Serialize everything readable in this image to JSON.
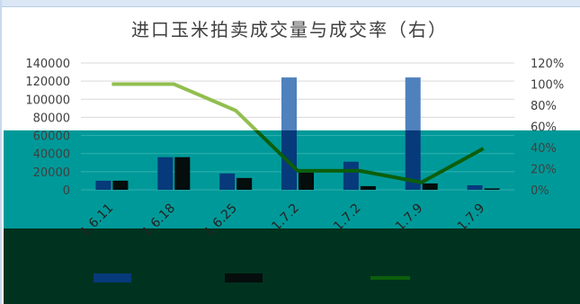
{
  "chart_data": {
    "type": "bar",
    "title": "进口玉米拍卖成交量与成交率（右）",
    "categories": [
      "1.6.11",
      "1.6.18",
      "1.6.25",
      "1.7.2",
      "1.7.2",
      "1.7.9",
      "1.7.9"
    ],
    "series": [
      {
        "type": "bar",
        "values": [
          10000,
          36000,
          18000,
          124000,
          31000,
          124000,
          5000
        ]
      },
      {
        "type": "bar",
        "values": [
          10000,
          36000,
          13000,
          19000,
          4000,
          7000,
          1500
        ]
      },
      {
        "type": "line",
        "axis": "right",
        "values": [
          1.0,
          1.0,
          0.75,
          0.18,
          0.18,
          0.07,
          0.39
        ]
      }
    ],
    "y_left": {
      "min": 0,
      "max": 140000,
      "ticks": [
        "0",
        "20000",
        "40000",
        "60000",
        "80000",
        "100000",
        "120000",
        "140000"
      ]
    },
    "y_right": {
      "min": 0,
      "max": 1.2,
      "ticks": [
        "0%",
        "20%",
        "40%",
        "60%",
        "80%",
        "100%",
        "120%"
      ]
    },
    "grid": true,
    "legend": "bottom",
    "colors": {
      "bar_upper": "#4f81bd",
      "bar_lower": "#063a7b",
      "bar2": "#050d0d",
      "line_upper": "#92be4f",
      "line_lower": "#0b5e0b",
      "teal_panel": "#009999",
      "dark_panel": "#00331f",
      "text": "#3f3f3f"
    }
  }
}
